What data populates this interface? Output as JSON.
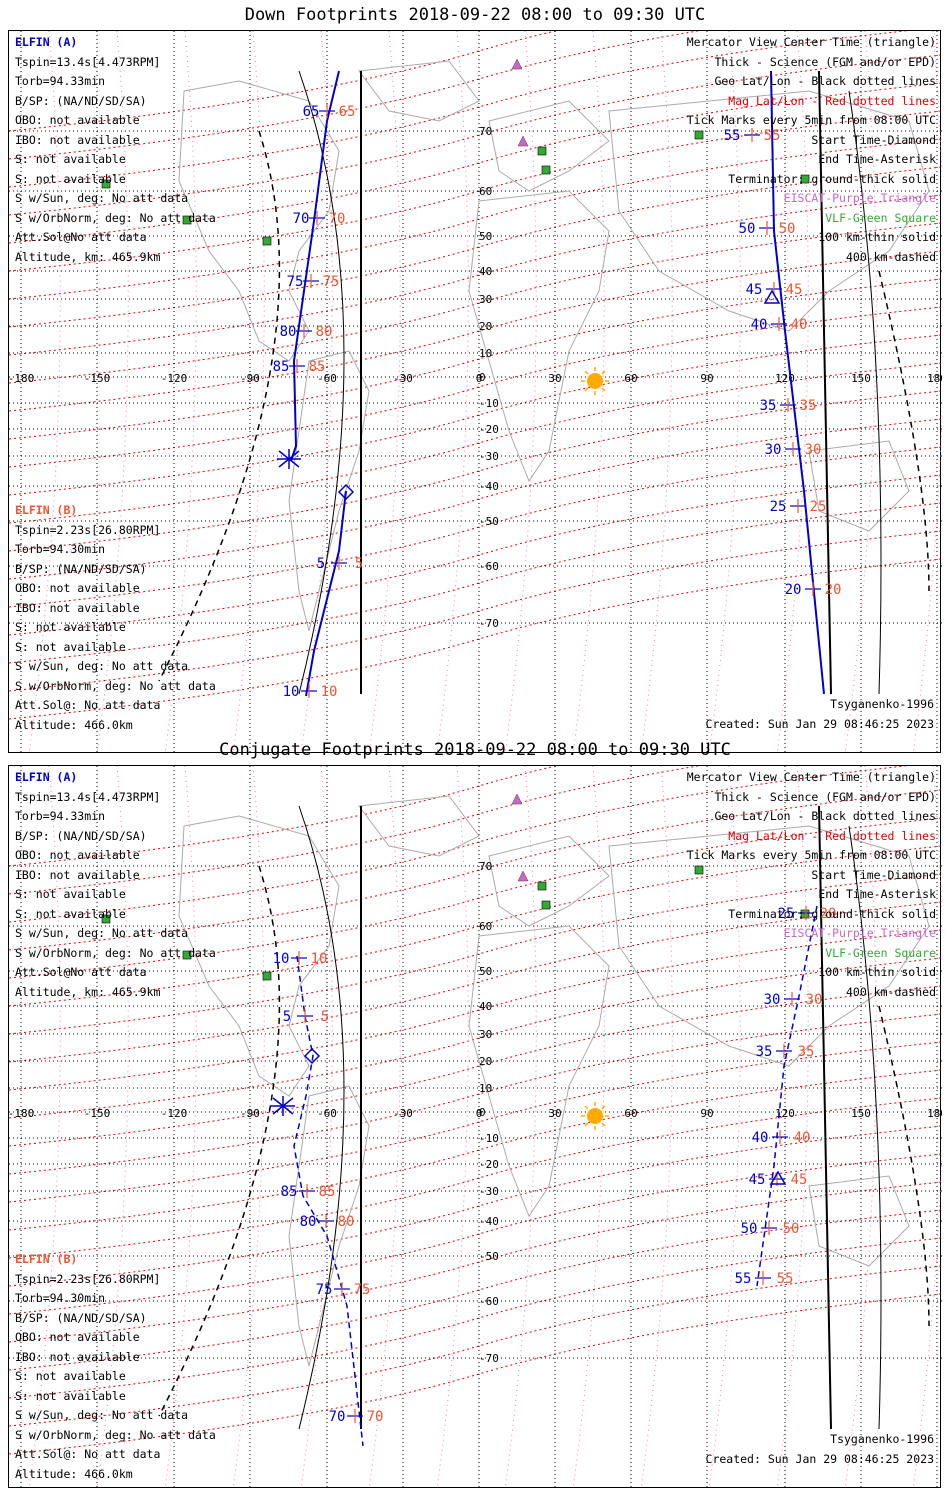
{
  "panels": [
    {
      "title": "Down Footprints 2018-09-22 08:00 to 09:30 UTC",
      "elfin_a": {
        "name": "ELFIN (A)",
        "lines": [
          "Tspin=13.4s[4.473RPM]",
          "Torb=94.33min",
          "B/SP: (NA/ND/SD/SA)",
          "OBO: not available",
          "IBO: not available",
          "S: not available",
          "S: not available",
          "S w/Sun, deg: No att data",
          "S w/OrbNorm, deg: No att data",
          "Att.Sol@No att data",
          "Altitude, km: 465.9km"
        ]
      },
      "elfin_b": {
        "name": "ELFIN (B)",
        "lines": [
          "Tspin=2.23s[26.80RPM]",
          "Torb=94.30min",
          "B/SP: (NA/ND/SD/SA)",
          "OBO: not available",
          "IBO: not available",
          "S: not available",
          "S: not available",
          "S w/Sun, deg: No att data",
          "S w/OrbNorm, deg: No att data",
          "Att.Sol@: No att data",
          "Altitude: 466.0km"
        ]
      },
      "legend": [
        {
          "text": "Mercator View Center Time (triangle)",
          "color": "#000000"
        },
        {
          "text": "Thick - Science (FGM and/or EPD)",
          "color": "#000000"
        },
        {
          "text": "Geo Lat/Lon - Black dotted lines",
          "color": "#000000"
        },
        {
          "text": "Mag Lat/Lon - Red dotted lines",
          "color": "#dd0000"
        },
        {
          "text": "Tick Marks every 5min from 08:00 UTC",
          "color": "#000000"
        },
        {
          "text": "Start Time-Diamond",
          "color": "#000000"
        },
        {
          "text": "End Time-Asterisk",
          "color": "#000000"
        },
        {
          "text": "Terminator: ground-thick solid",
          "color": "#000000"
        },
        {
          "text": "EISCAT-Purple Triangle",
          "color": "#cc66cc"
        },
        {
          "text": "VLF-Green Square",
          "color": "#33aa33"
        },
        {
          "text": "100 km-thin solid",
          "color": "#000000"
        },
        {
          "text": "400 km-dashed",
          "color": "#000000"
        }
      ],
      "model": "Tsyganenko-1996",
      "created": "Created: Sun Jan 29 08:46:25 2023",
      "lon_labels": [
        "-180",
        "-150",
        "-120",
        "-90",
        "-60",
        "-30",
        "0",
        "30",
        "60",
        "90",
        "120",
        "150",
        "180"
      ],
      "lat_labels": [
        "70",
        "60",
        "50",
        "40",
        "30",
        "20",
        "10",
        "0",
        "-10",
        "-20",
        "-30",
        "-40",
        "-50",
        "-60",
        "-70"
      ],
      "ticks": {
        "a_west": [
          {
            "blue": "65",
            "red": "65"
          },
          {
            "blue": "70",
            "red": "70"
          },
          {
            "blue": "75",
            "red": "75"
          },
          {
            "blue": "80",
            "red": "80"
          },
          {
            "blue": "85",
            "red": "85"
          }
        ],
        "b_west": [
          {
            "blue": "5",
            "red": "5"
          },
          {
            "blue": "10",
            "red": "10"
          }
        ],
        "a_east": [
          {
            "blue": "55",
            "red": "55"
          },
          {
            "blue": "50",
            "red": "50"
          },
          {
            "blue": "45",
            "red": "45"
          },
          {
            "blue": "40",
            "red": "40"
          },
          {
            "blue": "35",
            "red": "35"
          },
          {
            "blue": "30",
            "red": "30"
          },
          {
            "blue": "25",
            "red": "25"
          },
          {
            "blue": "20",
            "red": "20"
          }
        ]
      }
    },
    {
      "title": "Conjugate Footprints 2018-09-22 08:00 to 09:30 UTC",
      "elfin_a": {
        "name": "ELFIN (A)",
        "lines": [
          "Tspin=13.4s[4.473RPM]",
          "Torb=94.33min",
          "B/SP: (NA/ND/SD/SA)",
          "OBO: not available",
          "IBO: not available",
          "S: not available",
          "S: not available",
          "S w/Sun, deg: No att data",
          "S w/OrbNorm, deg: No att data",
          "Att.Sol@No att data",
          "Altitude, km: 465.9km"
        ]
      },
      "elfin_b": {
        "name": "ELFIN (B)",
        "lines": [
          "Tspin=2.23s[26.80RPM]",
          "Torb=94.30min",
          "B/SP: (NA/ND/SD/SA)",
          "OBO: not available",
          "IBO: not available",
          "S: not available",
          "S: not available",
          "S w/Sun, deg: No att data",
          "S w/OrbNorm, deg: No att data",
          "Att.Sol@: No att data",
          "Altitude: 466.0km"
        ]
      },
      "legend": [
        {
          "text": "Mercator View Center Time (triangle)",
          "color": "#000000"
        },
        {
          "text": "Thick - Science (FGM and/or EPD)",
          "color": "#000000"
        },
        {
          "text": "Geo Lat/Lon - Black dotted lines",
          "color": "#000000"
        },
        {
          "text": "Mag Lat/Lon - Red dotted lines",
          "color": "#dd0000"
        },
        {
          "text": "Tick Marks every 5min from 08:00 UTC",
          "color": "#000000"
        },
        {
          "text": "Start Time-Diamond",
          "color": "#000000"
        },
        {
          "text": "End Time-Asterisk",
          "color": "#000000"
        },
        {
          "text": "Terminator: ground-thick solid",
          "color": "#000000"
        },
        {
          "text": "EISCAT-Purple Triangle",
          "color": "#cc66cc"
        },
        {
          "text": "VLF-Green Square",
          "color": "#33aa33"
        },
        {
          "text": "100 km-thin solid",
          "color": "#000000"
        },
        {
          "text": "400 km-dashed",
          "color": "#000000"
        }
      ],
      "model": "Tsyganenko-1996",
      "created": "Created: Sun Jan 29 08:46:25 2023",
      "lon_labels": [
        "-180",
        "-150",
        "-120",
        "-90",
        "-60",
        "-30",
        "0",
        "30",
        "60",
        "90",
        "120",
        "150",
        "180"
      ],
      "lat_labels": [
        "70",
        "60",
        "50",
        "40",
        "30",
        "20",
        "10",
        "0",
        "-10",
        "-20",
        "-30",
        "-40",
        "-50",
        "-60",
        "-70"
      ],
      "ticks": {
        "a_west": [
          {
            "blue": "10",
            "red": "10"
          },
          {
            "blue": "5",
            "red": "5"
          },
          {
            "blue": "85",
            "red": "85"
          },
          {
            "blue": "80",
            "red": "80"
          },
          {
            "blue": "75",
            "red": "75"
          },
          {
            "blue": "70",
            "red": "70"
          }
        ],
        "a_east": [
          {
            "blue": "25",
            "red": "20"
          },
          {
            "blue": "30",
            "red": "30"
          },
          {
            "blue": "35",
            "red": "35"
          },
          {
            "blue": "40",
            "red": "40"
          },
          {
            "blue": "45",
            "red": "45"
          },
          {
            "blue": "50",
            "red": "50"
          },
          {
            "blue": "55",
            "red": "55"
          }
        ]
      }
    }
  ],
  "colors": {
    "blue_track": "#0000cc",
    "red_label": "#ee5533",
    "mag_grid": "#dd0000",
    "geo_grid": "#000000",
    "eiscat": "#cc66cc",
    "vlf": "#33aa33",
    "sun": "#ffaa00",
    "coast": "#aaaaaa"
  }
}
